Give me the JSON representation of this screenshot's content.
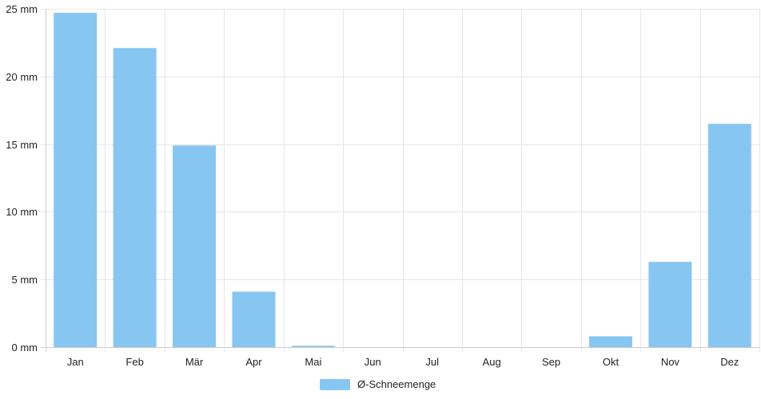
{
  "chart_data": {
    "type": "bar",
    "categories": [
      "Jan",
      "Feb",
      "Mär",
      "Apr",
      "Mai",
      "Jun",
      "Jul",
      "Aug",
      "Sep",
      "Okt",
      "Nov",
      "Dez"
    ],
    "series": [
      {
        "name": "Ø-Schneemenge",
        "color": "#88c6f2",
        "values": [
          24.7,
          22.1,
          14.9,
          4.1,
          0.1,
          0,
          0,
          0,
          0,
          0.8,
          6.3,
          16.5
        ]
      }
    ],
    "ylim": [
      0,
      25
    ],
    "yticks": [
      "0 mm",
      "5 mm",
      "10 mm",
      "15 mm",
      "20 mm",
      "25 mm"
    ],
    "ytick_values": [
      0,
      5,
      10,
      15,
      20,
      25
    ],
    "grid": true,
    "legend": "bottom-center",
    "colors": {
      "grid": "#e6e6e6",
      "axis": "#cccccc",
      "text": "#222222"
    }
  }
}
